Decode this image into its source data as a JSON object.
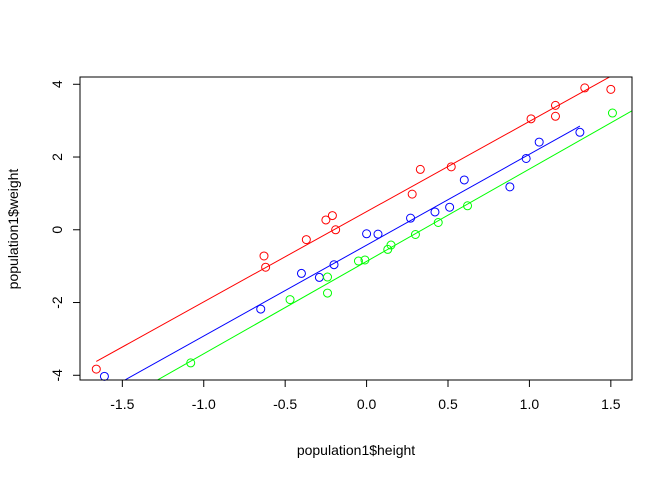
{
  "chart_data": {
    "type": "scatter",
    "title": "",
    "xlabel": "population1$height",
    "ylabel": "population1$weight",
    "xlim": [
      -1.76,
      1.63
    ],
    "ylim": [
      -4.13,
      4.2
    ],
    "x_ticks": [
      -1.5,
      -1.0,
      -0.5,
      0.0,
      0.5,
      1.0,
      1.5
    ],
    "x_tick_labels": [
      "-1.5",
      "-1.0",
      "-0.5",
      "0.0",
      "0.5",
      "1.0",
      "1.5"
    ],
    "y_ticks": [
      -4,
      -2,
      0,
      2,
      4
    ],
    "y_tick_labels": [
      "-4",
      "-2",
      "0",
      "2",
      "4"
    ],
    "grid": false,
    "series": [
      {
        "color": "#ff0000",
        "points": [
          {
            "x": -1.66,
            "y": -3.83
          },
          {
            "x": -0.63,
            "y": -0.72
          },
          {
            "x": -0.62,
            "y": -1.03
          },
          {
            "x": -0.37,
            "y": -0.27
          },
          {
            "x": -0.25,
            "y": 0.27
          },
          {
            "x": -0.21,
            "y": 0.39
          },
          {
            "x": -0.19,
            "y": 0.0
          },
          {
            "x": 0.28,
            "y": 0.98
          },
          {
            "x": 0.33,
            "y": 1.66
          },
          {
            "x": 0.52,
            "y": 1.73
          },
          {
            "x": 1.01,
            "y": 3.05
          },
          {
            "x": 1.16,
            "y": 3.12
          },
          {
            "x": 1.16,
            "y": 3.42
          },
          {
            "x": 1.34,
            "y": 3.9
          },
          {
            "x": 1.5,
            "y": 3.86
          }
        ],
        "fit_line": {
          "x": [
            -1.66,
            1.5
          ],
          "y": [
            -3.62,
            4.22
          ]
        }
      },
      {
        "color": "#0000ff",
        "points": [
          {
            "x": -1.61,
            "y": -4.03
          },
          {
            "x": -0.65,
            "y": -2.18
          },
          {
            "x": -0.4,
            "y": -1.2
          },
          {
            "x": -0.29,
            "y": -1.31
          },
          {
            "x": -0.2,
            "y": -0.96
          },
          {
            "x": 0.0,
            "y": -0.11
          },
          {
            "x": 0.07,
            "y": -0.12
          },
          {
            "x": 0.27,
            "y": 0.32
          },
          {
            "x": 0.42,
            "y": 0.49
          },
          {
            "x": 0.51,
            "y": 0.62
          },
          {
            "x": 0.6,
            "y": 1.37
          },
          {
            "x": 0.88,
            "y": 1.18
          },
          {
            "x": 0.98,
            "y": 1.96
          },
          {
            "x": 1.06,
            "y": 2.41
          },
          {
            "x": 1.31,
            "y": 2.68
          }
        ],
        "fit_line": {
          "x": [
            -1.5,
            1.31
          ],
          "y": [
            -4.17,
            2.85
          ]
        }
      },
      {
        "color": "#00ff00",
        "points": [
          {
            "x": -1.08,
            "y": -3.66
          },
          {
            "x": -0.47,
            "y": -1.92
          },
          {
            "x": -0.24,
            "y": -1.74
          },
          {
            "x": -0.24,
            "y": -1.3
          },
          {
            "x": -0.05,
            "y": -0.86
          },
          {
            "x": -0.01,
            "y": -0.83
          },
          {
            "x": 0.13,
            "y": -0.54
          },
          {
            "x": 0.15,
            "y": -0.42
          },
          {
            "x": 0.3,
            "y": -0.13
          },
          {
            "x": 0.44,
            "y": 0.2
          },
          {
            "x": 0.62,
            "y": 0.66
          },
          {
            "x": 1.51,
            "y": 3.21
          }
        ],
        "fit_line": {
          "x": [
            -1.3,
            1.63
          ],
          "y": [
            -4.17,
            3.27
          ]
        }
      }
    ]
  }
}
